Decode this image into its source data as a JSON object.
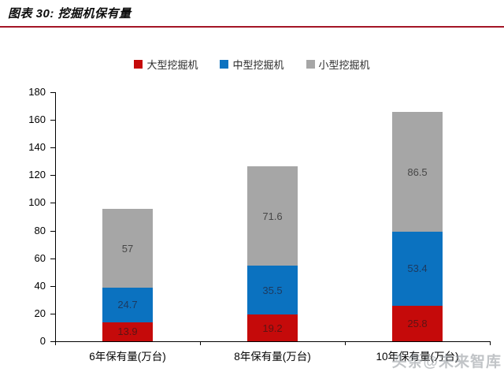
{
  "header": {
    "title": "图表 30: 挖掘机保有量"
  },
  "watermark": "头条@未来智库",
  "chart_data": {
    "type": "bar",
    "stacked": true,
    "title": "挖掘机保有量",
    "categories": [
      "6年保有量(万台)",
      "8年保有量(万台)",
      "10年保有量(万台)"
    ],
    "series": [
      {
        "name": "大型挖掘机",
        "color": "#c50a0a",
        "label_color": "#5c1414",
        "values": [
          13.9,
          19.2,
          25.8
        ]
      },
      {
        "name": "中型挖掘机",
        "color": "#0b72c0",
        "label_color": "#1d3a5f",
        "values": [
          24.7,
          35.5,
          53.4
        ]
      },
      {
        "name": "小型挖掘机",
        "color": "#a6a6a6",
        "label_color": "#474747",
        "values": [
          57,
          71.6,
          86.5
        ]
      }
    ],
    "xlabel": "",
    "ylabel": "",
    "ylim": [
      0,
      180
    ],
    "ytick_step": 20,
    "grid": false,
    "legend_position": "top"
  }
}
